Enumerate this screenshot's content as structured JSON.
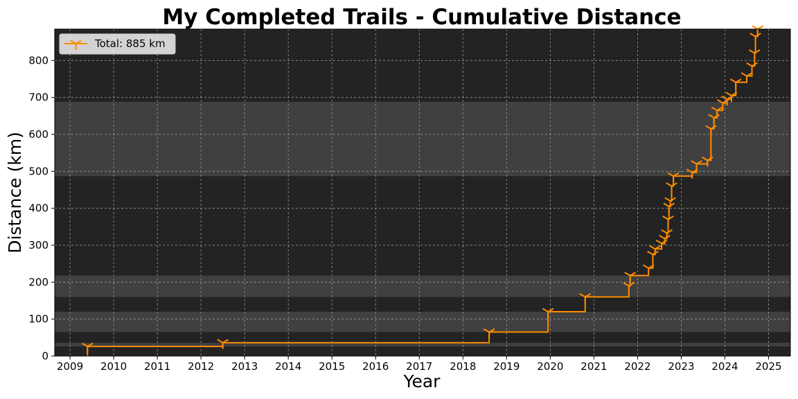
{
  "chart_data": {
    "type": "line",
    "title": "My Completed Trails - Cumulative Distance",
    "xlabel": "Year",
    "ylabel": "Distance (km)",
    "xlim": [
      2008.65,
      2025.5
    ],
    "ylim": [
      0,
      885
    ],
    "xticks": [
      2009,
      2010,
      2011,
      2012,
      2013,
      2014,
      2015,
      2016,
      2017,
      2018,
      2019,
      2020,
      2021,
      2022,
      2023,
      2024,
      2025
    ],
    "yticks": [
      0,
      100,
      200,
      300,
      400,
      500,
      600,
      700,
      800
    ],
    "grid": true,
    "legend_position": "upper-left",
    "step": "post",
    "background_color": "#232323",
    "highlight_bands": [
      {
        "y0": 26,
        "y1": 36
      },
      {
        "y0": 65,
        "y1": 120
      },
      {
        "y0": 160,
        "y1": 218
      },
      {
        "y0": 487,
        "y1": 688
      }
    ],
    "series": [
      {
        "name": "Total: 885 km",
        "color": "#ff8c00",
        "marker": "tri-down",
        "x": [
          2009.4,
          2012.5,
          2018.6,
          2019.95,
          2020.8,
          2021.8,
          2021.83,
          2022.25,
          2022.35,
          2022.4,
          2022.55,
          2022.62,
          2022.67,
          2022.7,
          2022.72,
          2022.75,
          2022.78,
          2022.82,
          2023.25,
          2023.35,
          2023.6,
          2023.68,
          2023.75,
          2023.82,
          2023.95,
          2024.05,
          2024.15,
          2024.25,
          2024.5,
          2024.62,
          2024.68,
          2024.7,
          2024.75
        ],
        "y": [
          26,
          36,
          65,
          120,
          160,
          190,
          218,
          238,
          275,
          290,
          305,
          318,
          333,
          370,
          405,
          420,
          460,
          487,
          497,
          520,
          530,
          615,
          645,
          665,
          685,
          695,
          705,
          741,
          758,
          785,
          820,
          865,
          885
        ]
      }
    ]
  }
}
